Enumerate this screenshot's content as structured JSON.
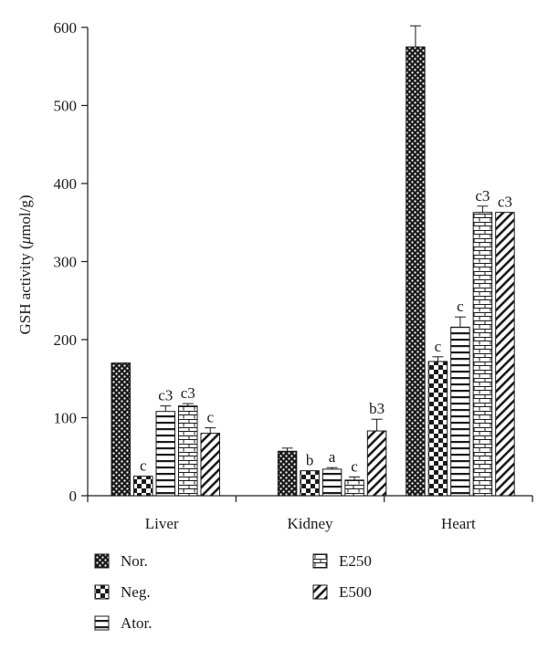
{
  "chart_data": {
    "type": "bar",
    "ylabel_main": "GSH activity (",
    "ylabel_unit": "μ",
    "ylabel_rest": "mol/g)",
    "ylim": [
      0,
      600
    ],
    "yticks": [
      0,
      100,
      200,
      300,
      400,
      500,
      600
    ],
    "categories": [
      "Liver",
      "Kidney",
      "Heart"
    ],
    "series": [
      {
        "name": "Nor.",
        "pattern": "dots",
        "values": [
          170,
          57,
          575
        ],
        "errors": [
          0,
          4,
          27
        ],
        "labels": [
          "",
          "",
          ""
        ]
      },
      {
        "name": "Neg.",
        "pattern": "checker",
        "values": [
          25,
          32,
          172
        ],
        "errors": [
          0,
          0,
          6
        ],
        "labels": [
          "c",
          "b",
          "c"
        ]
      },
      {
        "name": "Ator.",
        "pattern": "hlines",
        "values": [
          108,
          34,
          216
        ],
        "errors": [
          7,
          2,
          13
        ],
        "labels": [
          "c3",
          "a",
          "c"
        ]
      },
      {
        "name": "E250",
        "pattern": "bricks",
        "values": [
          115,
          20,
          363
        ],
        "errors": [
          3,
          4,
          8
        ],
        "labels": [
          "c3",
          "c",
          "c3"
        ]
      },
      {
        "name": "E500",
        "pattern": "diag",
        "values": [
          80,
          83,
          363
        ],
        "errors": [
          7,
          15,
          0
        ],
        "labels": [
          "c",
          "b3",
          "c3"
        ]
      }
    ],
    "legend_position": "bottom",
    "grid": false,
    "colors": {
      "ink": "#1a1a1a",
      "background": "#ffffff"
    }
  }
}
